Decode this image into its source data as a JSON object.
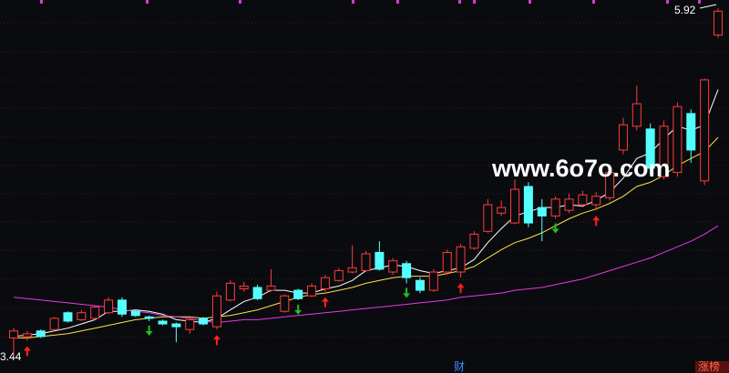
{
  "chart_data": {
    "type": "candlestick",
    "up_color": "#ff3b3b",
    "down_color": "#54ffff",
    "ylim": [
      3.32,
      5.98
    ],
    "candles": {
      "open": [
        3.57,
        3.58,
        3.62,
        3.63,
        3.75,
        3.7,
        3.71,
        3.75,
        3.84,
        3.76,
        3.72,
        3.69,
        3.67,
        3.63,
        3.71,
        3.65,
        3.84,
        3.92,
        3.93,
        3.91,
        3.76,
        3.91,
        3.87,
        3.92,
        3.98,
        4.04,
        4.05,
        4.18,
        4.04,
        4.1,
        3.98,
        3.91,
        4.04,
        4.04,
        4.21,
        4.33,
        4.46,
        4.39,
        4.65,
        4.5,
        4.44,
        4.48,
        4.52,
        4.52,
        4.57,
        4.91,
        5.08,
        5.06,
        4.72,
        4.75,
        5.17,
        4.69,
        5.73
      ],
      "high": [
        3.64,
        3.62,
        3.63,
        3.72,
        3.76,
        3.77,
        3.8,
        3.86,
        3.86,
        3.77,
        3.73,
        3.7,
        3.68,
        3.71,
        3.72,
        3.9,
        3.98,
        3.97,
        3.95,
        4.06,
        3.88,
        3.92,
        3.96,
        4.02,
        4.07,
        4.23,
        4.19,
        4.26,
        4.14,
        4.12,
        4.0,
        4.06,
        4.2,
        4.24,
        4.33,
        4.56,
        4.55,
        4.7,
        4.68,
        4.56,
        4.58,
        4.6,
        4.62,
        4.61,
        4.78,
        5.14,
        5.37,
        5.1,
        5.12,
        5.25,
        5.2,
        5.42,
        5.92
      ],
      "low": [
        3.44,
        3.55,
        3.57,
        3.62,
        3.68,
        3.69,
        3.7,
        3.74,
        3.72,
        3.72,
        3.69,
        3.66,
        3.54,
        3.6,
        3.66,
        3.63,
        3.83,
        3.9,
        3.84,
        3.9,
        3.75,
        3.84,
        3.86,
        3.9,
        3.97,
        4.03,
        4.04,
        4.05,
        4.02,
        3.96,
        3.89,
        3.9,
        4.02,
        4.0,
        4.2,
        4.32,
        4.44,
        4.38,
        4.36,
        4.26,
        4.42,
        4.46,
        4.5,
        4.48,
        4.55,
        4.88,
        5.05,
        4.74,
        4.7,
        4.72,
        4.82,
        4.66,
        5.71
      ],
      "close": [
        3.62,
        3.6,
        3.58,
        3.71,
        3.69,
        3.75,
        3.79,
        3.84,
        3.74,
        3.73,
        3.71,
        3.67,
        3.65,
        3.7,
        3.67,
        3.87,
        3.96,
        3.94,
        3.85,
        3.94,
        3.87,
        3.85,
        3.94,
        4.0,
        4.05,
        4.07,
        4.17,
        4.06,
        4.12,
        4.0,
        3.91,
        4.04,
        4.18,
        4.22,
        4.31,
        4.52,
        4.5,
        4.63,
        4.39,
        4.44,
        4.56,
        4.56,
        4.59,
        4.58,
        4.75,
        5.09,
        5.24,
        4.78,
        5.08,
        5.22,
        4.91,
        5.41,
        5.9
      ]
    },
    "lines": [
      {
        "color": "#ffffff",
        "values": [
          3.58,
          3.59,
          3.6,
          3.62,
          3.64,
          3.67,
          3.7,
          3.76,
          3.76,
          3.77,
          3.76,
          3.74,
          3.7,
          3.69,
          3.68,
          3.71,
          3.77,
          3.83,
          3.86,
          3.91,
          3.91,
          3.89,
          3.89,
          3.92,
          3.94,
          3.98,
          4.05,
          4.07,
          4.09,
          4.08,
          4.05,
          4.03,
          4.05,
          4.07,
          4.13,
          4.25,
          4.35,
          4.44,
          4.47,
          4.5,
          4.5,
          4.52,
          4.51,
          4.55,
          4.61,
          4.71,
          4.85,
          4.89,
          4.99,
          5.08,
          5.05,
          5.09,
          5.34
        ]
      },
      {
        "color": "#ffe24a",
        "values": [
          3.57,
          3.57,
          3.58,
          3.59,
          3.6,
          3.62,
          3.64,
          3.66,
          3.68,
          3.7,
          3.71,
          3.72,
          3.72,
          3.72,
          3.71,
          3.72,
          3.73,
          3.75,
          3.77,
          3.8,
          3.83,
          3.86,
          3.88,
          3.89,
          3.91,
          3.93,
          3.96,
          3.98,
          4.0,
          4.01,
          4.01,
          4.01,
          4.03,
          4.05,
          4.08,
          4.14,
          4.2,
          4.25,
          4.28,
          4.32,
          4.37,
          4.42,
          4.46,
          4.49,
          4.53,
          4.58,
          4.65,
          4.68,
          4.73,
          4.8,
          4.85,
          4.9,
          5.0
        ]
      },
      {
        "color": "#e03ce0",
        "values": [
          3.86,
          3.85,
          3.84,
          3.83,
          3.82,
          3.81,
          3.8,
          3.79,
          3.77,
          3.76,
          3.75,
          3.73,
          3.72,
          3.71,
          3.69,
          3.68,
          3.69,
          3.7,
          3.7,
          3.71,
          3.72,
          3.73,
          3.74,
          3.75,
          3.76,
          3.77,
          3.78,
          3.79,
          3.8,
          3.81,
          3.82,
          3.83,
          3.84,
          3.86,
          3.87,
          3.88,
          3.89,
          3.91,
          3.92,
          3.93,
          3.95,
          3.97,
          3.99,
          4.02,
          4.05,
          4.08,
          4.11,
          4.14,
          4.18,
          4.22,
          4.26,
          4.31,
          4.37
        ]
      }
    ],
    "up_arrows": [
      2,
      16,
      24,
      34,
      44
    ],
    "down_arrows": [
      11,
      22,
      30,
      41
    ],
    "max_label": 5.92,
    "min_label": 3.44,
    "watermark": "www.6o7o.com",
    "footer_tags": [
      "财",
      "涨榜"
    ]
  }
}
